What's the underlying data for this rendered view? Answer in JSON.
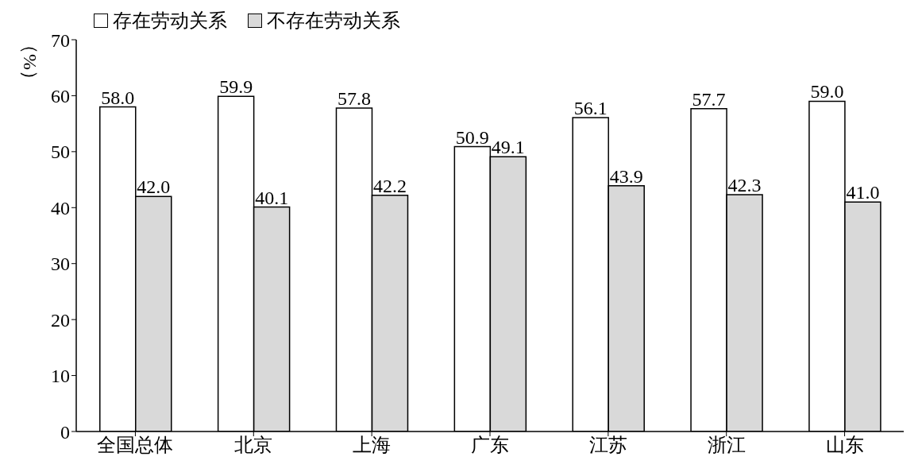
{
  "chart_data": {
    "type": "bar",
    "ylabel": "（%）",
    "categories": [
      "全国总体",
      "北京",
      "上海",
      "广东",
      "江苏",
      "浙江",
      "山东"
    ],
    "series": [
      {
        "name": "存在劳动关系",
        "color": "#ffffff",
        "values": [
          58.0,
          59.9,
          57.8,
          50.9,
          56.1,
          57.7,
          59.0
        ],
        "value_labels": [
          "58.0",
          "59.9",
          "57.8",
          "50.9",
          "56.1",
          "57.7",
          "59.0"
        ]
      },
      {
        "name": "不存在劳动关系",
        "color": "#d9d9d9",
        "values": [
          42.0,
          40.1,
          42.2,
          49.1,
          43.9,
          42.3,
          41.0
        ],
        "value_labels": [
          "42.0",
          "40.1",
          "42.2",
          "49.1",
          "43.9",
          "42.3",
          "41.0"
        ]
      }
    ],
    "ylim": [
      0,
      70
    ],
    "yticks": [
      0,
      10,
      20,
      30,
      40,
      50,
      60,
      70
    ],
    "grid": false,
    "legend": "top left"
  }
}
